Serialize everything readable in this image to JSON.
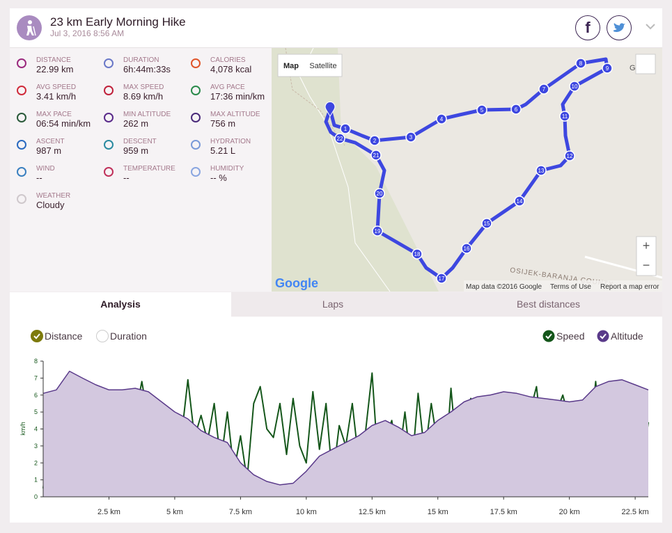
{
  "header": {
    "title": "23 km Early Morning Hike",
    "date": "Jul 3, 2016 8:56 AM",
    "facebook": "f"
  },
  "stats": [
    {
      "label": "DISTANCE",
      "value": "22.99 km"
    },
    {
      "label": "DURATION",
      "value": "6h:44m:33s"
    },
    {
      "label": "CALORIES",
      "value": "4,078 kcal"
    },
    {
      "label": "AVG SPEED",
      "value": "3.41 km/h"
    },
    {
      "label": "MAX SPEED",
      "value": "8.69 km/h"
    },
    {
      "label": "AVG PACE",
      "value": "17:36 min/km"
    },
    {
      "label": "MAX PACE",
      "value": "06:54 min/km"
    },
    {
      "label": "MIN ALTITUDE",
      "value": "262 m"
    },
    {
      "label": "MAX ALTITUDE",
      "value": "756 m"
    },
    {
      "label": "ASCENT",
      "value": "987 m"
    },
    {
      "label": "DESCENT",
      "value": "959 m"
    },
    {
      "label": "HYDRATION",
      "value": "5.21 L"
    },
    {
      "label": "WIND",
      "value": "--"
    },
    {
      "label": "TEMPERATURE",
      "value": "--"
    },
    {
      "label": "HUMIDITY",
      "value": "-- %"
    },
    {
      "label": "WEATHER",
      "value": "Cloudy"
    }
  ],
  "map": {
    "buttons": [
      "Map",
      "Satellite"
    ],
    "markers": [
      "1",
      "2",
      "3",
      "4",
      "5",
      "6",
      "7",
      "8",
      "9",
      "10",
      "11",
      "12",
      "13",
      "14",
      "15",
      "16",
      "17",
      "18",
      "19",
      "20",
      "21",
      "22"
    ],
    "logo": "Google",
    "attribution": "Map data ©2016 Google",
    "links": [
      "Terms of Use",
      "Report a map error"
    ],
    "region": "OSIJEK-BARANJA COUNTY",
    "zoom": [
      "+",
      "−"
    ],
    "place": "Ga"
  },
  "tabs": [
    "Analysis",
    "Laps",
    "Best distances"
  ],
  "chart_data": {
    "type": "line",
    "x_modes": [
      {
        "name": "Distance",
        "selected": true,
        "color": "#7d7a0c"
      },
      {
        "name": "Duration",
        "selected": false,
        "color": "#7d7a0c"
      }
    ],
    "ylabel": "km/h",
    "ylim": [
      0,
      8
    ],
    "yticks": [
      0,
      1,
      2,
      3,
      4,
      5,
      6,
      7,
      8
    ],
    "y2lim": [
      210,
      800
    ],
    "xlim": [
      0,
      23
    ],
    "xticks": [
      {
        "value": 2.5,
        "label": "2.5 km"
      },
      {
        "value": 5,
        "label": "5 km"
      },
      {
        "value": 7.5,
        "label": "7.5 km"
      },
      {
        "value": 10,
        "label": "10 km"
      },
      {
        "value": 12.5,
        "label": "12.5 km"
      },
      {
        "value": 15,
        "label": "15 km"
      },
      {
        "value": 17.5,
        "label": "17.5 km"
      },
      {
        "value": 20,
        "label": "20 km"
      },
      {
        "value": 22.5,
        "label": "22.5 km"
      }
    ],
    "series": [
      {
        "name": "Speed",
        "color": "#14561a",
        "axis": "y",
        "x": [
          0,
          0.25,
          0.5,
          0.75,
          1,
          1.25,
          1.5,
          1.75,
          2,
          2.25,
          2.5,
          2.75,
          3,
          3.25,
          3.5,
          3.75,
          4,
          4.25,
          4.5,
          4.75,
          5,
          5.25,
          5.5,
          5.75,
          6,
          6.25,
          6.5,
          6.75,
          7,
          7.25,
          7.5,
          7.75,
          8,
          8.25,
          8.5,
          8.75,
          9,
          9.25,
          9.5,
          9.75,
          10,
          10.25,
          10.5,
          10.75,
          11,
          11.25,
          11.5,
          11.75,
          12,
          12.25,
          12.5,
          12.75,
          13,
          13.25,
          13.5,
          13.75,
          14,
          14.25,
          14.5,
          14.75,
          15,
          15.25,
          15.5,
          15.75,
          16,
          16.25,
          16.5,
          16.75,
          17,
          17.25,
          17.5,
          17.75,
          18,
          18.25,
          18.5,
          18.75,
          19,
          19.25,
          19.5,
          19.75,
          20,
          20.25,
          20.5,
          20.75,
          21,
          21.25,
          21.5,
          21.75,
          22,
          22.25,
          22.5,
          22.75,
          23
        ],
        "values": [
          0.5,
          4,
          1.5,
          4,
          0.8,
          3.5,
          4.5,
          1.2,
          6.5,
          2,
          1,
          6,
          3,
          0.3,
          4.8,
          6.8,
          4.5,
          3,
          2.8,
          5.2,
          1,
          3.5,
          6.9,
          3.5,
          4.8,
          3.3,
          5.5,
          2,
          5,
          1.5,
          3.6,
          1,
          5.5,
          6.5,
          4,
          3.5,
          5.5,
          2.5,
          5.8,
          3,
          2,
          6.2,
          2.8,
          5.5,
          1,
          4.2,
          3,
          5.5,
          2,
          3.8,
          7.3,
          1.5,
          3.5,
          4.5,
          2,
          5,
          1.5,
          6.1,
          2.5,
          5.5,
          3,
          1,
          6.4,
          2,
          4.5,
          5.8,
          2.5,
          4.8,
          1,
          4,
          5.5,
          2,
          6,
          1.5,
          5,
          6.5,
          3,
          1,
          5,
          6,
          4.5,
          0.4,
          5.5,
          3,
          6.8,
          2.5,
          5.5,
          3.3,
          6.2,
          3.5,
          5.8,
          1.5,
          4.4
        ]
      },
      {
        "name": "Altitude",
        "color": "#5a3a8a",
        "fill": "#d3c8df",
        "axis": "y2",
        "x": [
          0,
          0.5,
          1,
          1.5,
          2,
          2.5,
          3,
          3.5,
          4,
          4.5,
          5,
          5.5,
          6,
          6.5,
          7,
          7.5,
          8,
          8.5,
          9,
          9.5,
          10,
          10.5,
          11,
          11.5,
          12,
          12.5,
          13,
          13.5,
          14,
          14.5,
          15,
          15.5,
          16,
          16.5,
          17,
          17.5,
          18,
          18.5,
          19,
          19.5,
          20,
          20.5,
          21,
          21.5,
          22,
          22.5,
          23
        ],
        "values": [
          660,
          675,
          756,
          726,
          697,
          675,
          675,
          682,
          667,
          623,
          579,
          549,
          498,
          468,
          446,
          358,
          306,
          277,
          262,
          269,
          321,
          387,
          417,
          446,
          476,
          520,
          542,
          513,
          476,
          490,
          542,
          579,
          623,
          645,
          653,
          667,
          660,
          645,
          638,
          631,
          623,
          631,
          689,
          712,
          719,
          697,
          675
        ]
      }
    ]
  }
}
